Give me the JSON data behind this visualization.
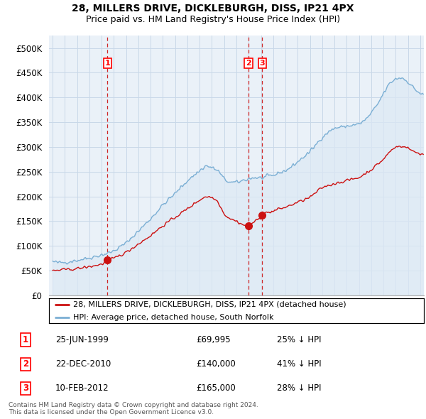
{
  "title": "28, MILLERS DRIVE, DICKLEBURGH, DISS, IP21 4PX",
  "subtitle": "Price paid vs. HM Land Registry's House Price Index (HPI)",
  "hpi_color": "#7bafd4",
  "hpi_fill_color": "#dce9f5",
  "price_color": "#cc1111",
  "dashed_color": "#cc1111",
  "background_color": "#ffffff",
  "plot_bg_color": "#eaf1f8",
  "grid_color": "#c8d8e8",
  "ylim": [
    0,
    525000
  ],
  "yticks": [
    0,
    50000,
    100000,
    150000,
    200000,
    250000,
    300000,
    350000,
    400000,
    450000,
    500000
  ],
  "ytick_labels": [
    "£0",
    "£50K",
    "£100K",
    "£150K",
    "£200K",
    "£250K",
    "£300K",
    "£350K",
    "£400K",
    "£450K",
    "£500K"
  ],
  "transactions": [
    {
      "date_num": 1999.48,
      "price": 69995,
      "label": "1"
    },
    {
      "date_num": 2010.97,
      "price": 140000,
      "label": "2"
    },
    {
      "date_num": 2012.11,
      "price": 165000,
      "label": "3"
    }
  ],
  "table_rows": [
    {
      "num": "1",
      "date": "25-JUN-1999",
      "price": "£69,995",
      "note": "25% ↓ HPI"
    },
    {
      "num": "2",
      "date": "22-DEC-2010",
      "price": "£140,000",
      "note": "41% ↓ HPI"
    },
    {
      "num": "3",
      "date": "10-FEB-2012",
      "price": "£165,000",
      "note": "28% ↓ HPI"
    }
  ],
  "footer": "Contains HM Land Registry data © Crown copyright and database right 2024.\nThis data is licensed under the Open Government Licence v3.0.",
  "legend1": "28, MILLERS DRIVE, DICKLEBURGH, DISS, IP21 4PX (detached house)",
  "legend2": "HPI: Average price, detached house, South Norfolk"
}
